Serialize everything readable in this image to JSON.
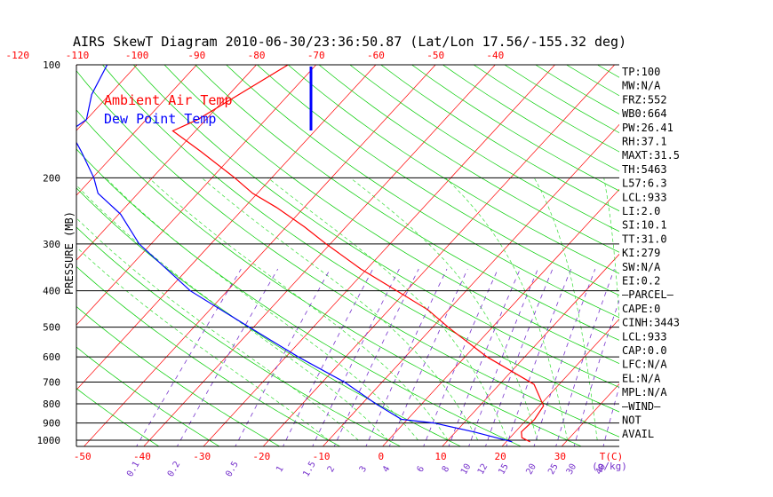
{
  "chart_data": {
    "type": "skew-t",
    "title": "AIRS SkewT Diagram 2010-06-30/23:36:50.87 (Lat/Lon 17.56/-155.32 deg)",
    "ylabel": "PRESSURE (MB)",
    "y_scale": "log",
    "ylim": [
      1050,
      100
    ],
    "pressure_ticks": [
      "100",
      "200",
      "300",
      "400",
      "500",
      "600",
      "700",
      "800",
      "900",
      "1000"
    ],
    "temp_axis_label": "T(C)",
    "mixing_ratio_label": "(g/kg)",
    "bottom_temp_ticks": [
      "-50",
      "-40",
      "-30",
      "-20",
      "-10",
      "0",
      "10",
      "20",
      "30"
    ],
    "top_temp_ticks": [
      "-120",
      "-110",
      "-100",
      "-90",
      "-80",
      "-70",
      "-60",
      "-50",
      "-40"
    ],
    "mixing_ratio_ticks": [
      "0.1",
      "0.2",
      "0.5",
      "1",
      "1.5",
      "2",
      "3",
      "4",
      "6",
      "8",
      "10",
      "12",
      "15",
      "20",
      "25",
      "30",
      "40"
    ],
    "legend": [
      {
        "name": "Ambient Air Temp",
        "color": "#ff0000"
      },
      {
        "name": "Dew Point Temp",
        "color": "#0000ff"
      }
    ],
    "series": [
      {
        "name": "Ambient Air Temp",
        "color": "#ff0000",
        "points": [
          {
            "p": 1010,
            "t": 24.0
          },
          {
            "p": 985,
            "t": 22.0
          },
          {
            "p": 950,
            "t": 21.0
          },
          {
            "p": 880,
            "t": 21.3
          },
          {
            "p": 810,
            "t": 20.7
          },
          {
            "p": 710,
            "t": 15.8
          },
          {
            "p": 600,
            "t": 3.7
          },
          {
            "p": 500,
            "t": -7.4
          },
          {
            "p": 450,
            "t": -13.4
          },
          {
            "p": 400,
            "t": -21.6
          },
          {
            "p": 350,
            "t": -31.0
          },
          {
            "p": 300,
            "t": -40.7
          },
          {
            "p": 270,
            "t": -47.0
          },
          {
            "p": 240,
            "t": -54.6
          },
          {
            "p": 220,
            "t": -60.8
          },
          {
            "p": 200,
            "t": -66.2
          },
          {
            "p": 170,
            "t": -76.0
          },
          {
            "p": 150,
            "t": -83.8
          },
          {
            "p": 140,
            "t": -81.4
          },
          {
            "p": 100,
            "t": -74.7
          }
        ]
      },
      {
        "name": "Dew Point Temp",
        "color": "#0000ff",
        "points": [
          {
            "p": 1010,
            "t": 21.0
          },
          {
            "p": 950,
            "t": 13.0
          },
          {
            "p": 900,
            "t": 5.0
          },
          {
            "p": 880,
            "t": -1.0
          },
          {
            "p": 800,
            "t": -7.7
          },
          {
            "p": 700,
            "t": -16.3
          },
          {
            "p": 600,
            "t": -27.9
          },
          {
            "p": 500,
            "t": -40.7
          },
          {
            "p": 400,
            "t": -56.2
          },
          {
            "p": 300,
            "t": -72.0
          },
          {
            "p": 250,
            "t": -79.7
          },
          {
            "p": 220,
            "t": -86.7
          },
          {
            "p": 200,
            "t": -89.8
          },
          {
            "p": 170,
            "t": -96.0
          },
          {
            "p": 150,
            "t": -101.0
          },
          {
            "p": 140,
            "t": -100.0
          },
          {
            "p": 120,
            "t": -103.0
          },
          {
            "p": 100,
            "t": -105.0
          }
        ]
      }
    ],
    "stats": [
      "TP:100",
      "MW:N/A",
      "FRZ:552",
      "WB0:664",
      "PW:26.41",
      "RH:37.1",
      "MAXT:31.5",
      "TH:5463",
      "L57:6.3",
      "LCL:933",
      "LI:2.0",
      "SI:10.1",
      "TT:31.0",
      "KI:279",
      "SW:N/A",
      "EI:0.2",
      "—PARCEL—",
      "CAPE:0",
      "CINH:3443",
      "LCL:933",
      "CAP:0.0",
      "LFC:N/A",
      "EL:N/A",
      "MPL:N/A",
      "—WIND—",
      "NOT",
      "AVAIL"
    ],
    "colors": {
      "isotherm": "#ff0000",
      "dry_adiabat": "#00cc00",
      "moist_adiabat": "#33dd33",
      "mixing_ratio": "#7733cc",
      "isobar": "#000000",
      "title": "#000000",
      "axis_ticks": "#ff0000"
    },
    "grid": true
  }
}
